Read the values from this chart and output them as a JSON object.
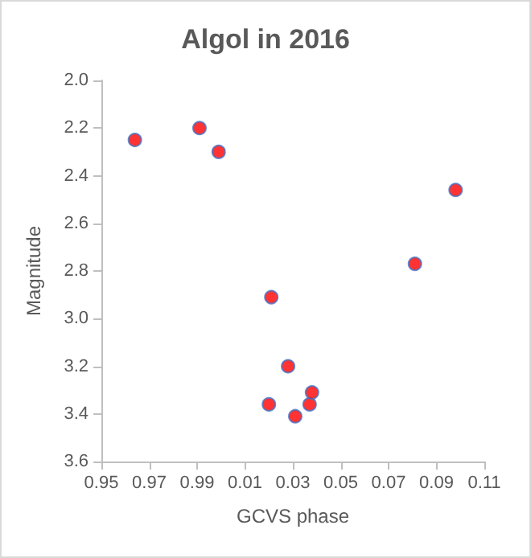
{
  "chart_data": [
    {
      "type": "scatter",
      "title": "Algol in 2016",
      "ylabel": "Magnitude",
      "x": [
        0.964,
        0.991,
        0.999
      ],
      "values": [
        2.25,
        2.2,
        2.3
      ],
      "color": "#ff0000",
      "xlim": [
        0.95,
        1.0
      ],
      "xticks": [
        0.95,
        0.97,
        0.99
      ],
      "ylim": [
        3.6,
        2.0
      ],
      "yticks": [
        {
          "value": 2.0,
          "label": "2.0"
        },
        {
          "value": 2.2,
          "label": "2.2"
        },
        {
          "value": 2.4,
          "label": "2.4"
        },
        {
          "value": 2.6,
          "label": "2.6"
        },
        {
          "value": 2.8,
          "label": "2.8"
        },
        {
          "value": 3.0,
          "label": "3.0"
        },
        {
          "value": 3.2,
          "label": "3.2"
        },
        {
          "value": 3.4,
          "label": "3.4"
        },
        {
          "value": 3.6,
          "label": "3.6"
        }
      ],
      "grid": false,
      "marker": "circle"
    },
    {
      "type": "scatter",
      "xlabel": "GCVS phase",
      "x": [
        0.021,
        0.081,
        0.098,
        0.028,
        0.02,
        0.031,
        0.037,
        0.038
      ],
      "values": [
        2.91,
        2.77,
        2.46,
        3.2,
        3.36,
        3.41,
        3.36,
        3.31
      ],
      "color": "#ff0000",
      "xlim": [
        0.0,
        0.11
      ],
      "xticks": [
        0.01,
        0.03,
        0.05,
        0.07,
        0.09,
        0.11
      ],
      "ylim": [
        3.6,
        2.0
      ],
      "grid": false,
      "marker": "circle",
      "tick_labels": "x"
    }
  ]
}
